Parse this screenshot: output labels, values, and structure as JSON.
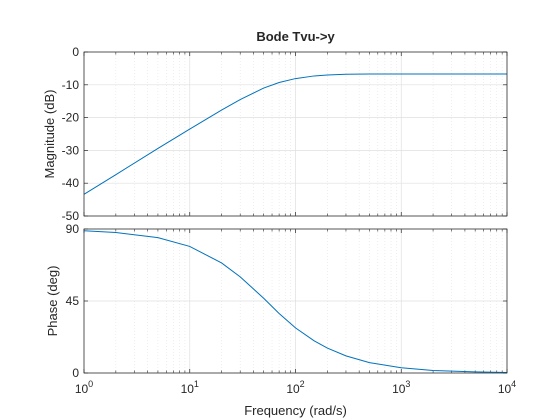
{
  "chart_data": {
    "type": "line",
    "title": "Bode Tvu->y",
    "xlabel": "Frequency  (rad/s)",
    "x_scale": "log",
    "xlim": [
      1,
      10000
    ],
    "x_ticks": [
      1,
      10,
      100,
      1000,
      10000
    ],
    "x_tick_labels": [
      {
        "base": "10",
        "exp": "0"
      },
      {
        "base": "10",
        "exp": "1"
      },
      {
        "base": "10",
        "exp": "2"
      },
      {
        "base": "10",
        "exp": "3"
      },
      {
        "base": "10",
        "exp": "4"
      }
    ],
    "grid": true,
    "line_color": "#0072bd",
    "panels": [
      {
        "name": "magnitude",
        "ylabel": "Magnitude (dB)",
        "ylim": [
          -50,
          0
        ],
        "y_ticks": [
          0,
          -10,
          -20,
          -30,
          -40,
          -50
        ],
        "y_tick_labels": [
          "0",
          "-10",
          "-20",
          "-30",
          "-40",
          "-50"
        ],
        "series": [
          {
            "x": [
              1,
              2,
              5,
              10,
              20,
              30,
              50,
              70,
              100,
              150,
              200,
              300,
              500,
              1000,
              10000
            ],
            "y": [
              -43.4,
              -37.4,
              -29.4,
              -23.5,
              -17.7,
              -14.5,
              -11.0,
              -9.3,
              -8.1,
              -7.3,
              -7.0,
              -6.8,
              -6.72,
              -6.7,
              -6.7
            ]
          }
        ]
      },
      {
        "name": "phase",
        "ylabel": "Phase (deg)",
        "ylim": [
          0,
          90
        ],
        "y_ticks": [
          90,
          45,
          0
        ],
        "y_tick_labels": [
          "90",
          "45",
          "0"
        ],
        "series": [
          {
            "x": [
              1,
              2,
              5,
              10,
              20,
              30,
              50,
              70,
              100,
              150,
              200,
              300,
              500,
              1000,
              2000,
              5000,
              10000
            ],
            "y": [
              88.9,
              87.8,
              84.6,
              79.1,
              68.8,
              60.1,
              46.7,
              37.2,
              28.2,
              20.1,
              15.6,
              10.7,
              6.5,
              3.3,
              1.6,
              0.7,
              0.3
            ]
          }
        ]
      }
    ]
  }
}
